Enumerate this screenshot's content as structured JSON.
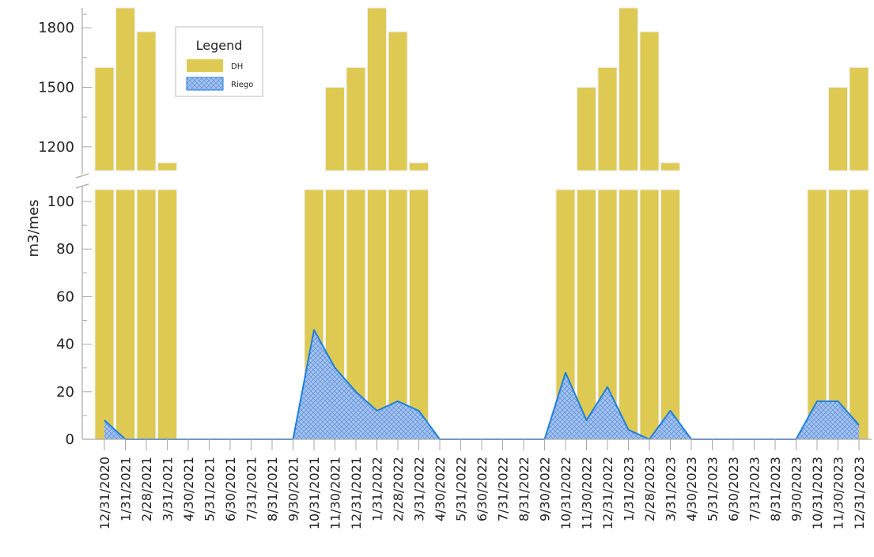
{
  "chart_data": {
    "type": "bar",
    "ylabel": "m3/mes",
    "legend": {
      "title": "Legend",
      "placement": "top-left"
    },
    "categories": [
      "12/31/2020",
      "1/31/2021",
      "2/28/2021",
      "3/31/2021",
      "4/30/2021",
      "5/31/2021",
      "6/30/2021",
      "7/31/2021",
      "8/31/2021",
      "9/30/2021",
      "10/31/2021",
      "11/30/2021",
      "12/31/2021",
      "1/31/2022",
      "2/28/2022",
      "3/31/2022",
      "4/30/2022",
      "5/31/2022",
      "6/30/2022",
      "7/31/2022",
      "8/31/2022",
      "9/30/2022",
      "10/31/2022",
      "11/30/2022",
      "12/31/2022",
      "1/31/2023",
      "2/28/2023",
      "3/31/2023",
      "4/30/2023",
      "5/31/2023",
      "6/30/2023",
      "7/31/2023",
      "8/31/2023",
      "9/30/2023",
      "10/31/2023",
      "11/30/2023",
      "12/31/2023"
    ],
    "broken_axis": {
      "lower": {
        "ylim": [
          0,
          105
        ],
        "ticks": [
          0,
          20,
          40,
          60,
          80,
          100
        ]
      },
      "upper": {
        "ylim": [
          1080,
          1900
        ],
        "ticks": [
          1200,
          1500,
          1800
        ]
      }
    },
    "series": [
      {
        "name": "DH",
        "type": "bar",
        "color": "#DECA52",
        "values": [
          1600,
          1900,
          1780,
          1120,
          0,
          0,
          0,
          0,
          0,
          0,
          105,
          1500,
          1600,
          1900,
          1780,
          1120,
          0,
          0,
          0,
          0,
          0,
          0,
          105,
          1500,
          1600,
          1900,
          1780,
          1120,
          0,
          0,
          0,
          0,
          0,
          0,
          105,
          1500,
          1600
        ]
      },
      {
        "name": "Riego",
        "type": "area",
        "color": "#1E7FE0",
        "fill": "#A9C5EE",
        "values": [
          8,
          0,
          0,
          0,
          0,
          0,
          0,
          0,
          0,
          0,
          46,
          30,
          20,
          12,
          16,
          12,
          0,
          0,
          0,
          0,
          0,
          0,
          28,
          8,
          22,
          4,
          0,
          12,
          0,
          0,
          0,
          0,
          0,
          0,
          16,
          16,
          6
        ]
      }
    ]
  }
}
